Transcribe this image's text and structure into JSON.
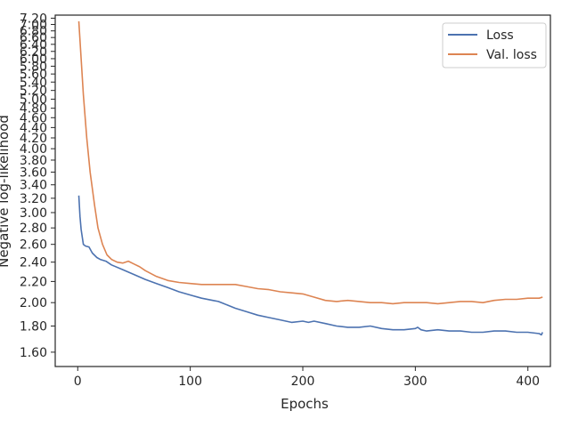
{
  "chart_data": {
    "type": "line",
    "xlabel": "Epochs",
    "ylabel": "Negative log-likelihood",
    "xlim": [
      -20,
      420
    ],
    "ylim": [
      1.5,
      7.3
    ],
    "y_scale": "log",
    "xticks": [
      0,
      100,
      200,
      300,
      400
    ],
    "xtick_labels": [
      "0",
      "100",
      "200",
      "300",
      "400"
    ],
    "yticks": [
      1.6,
      1.8,
      2.0,
      2.2,
      2.4,
      2.6,
      2.8,
      3.0,
      3.2,
      3.4,
      3.6,
      3.8,
      4.0,
      4.2,
      4.4,
      4.6,
      4.8,
      5.0,
      5.2,
      5.4,
      5.6,
      5.8,
      6.0,
      6.2,
      6.4,
      6.6,
      6.8,
      7.0,
      7.2
    ],
    "ytick_labels": [
      "1.60",
      "1.80",
      "2.00",
      "2.20",
      "2.40",
      "2.60",
      "2.80",
      "3.00",
      "3.20",
      "3.40",
      "3.60",
      "3.80",
      "4.00",
      "4.20",
      "4.40",
      "4.60",
      "4.80",
      "5.00",
      "5.20",
      "5.40",
      "5.60",
      "5.80",
      "6.00",
      "6.20",
      "6.40",
      "6.60",
      "6.80",
      "7.00",
      "7.20"
    ],
    "legend_position": "top-right",
    "series": [
      {
        "name": "Loss",
        "color": "#4c72b0",
        "x": [
          1,
          2,
          3,
          5,
          7,
          10,
          13,
          17,
          20,
          25,
          30,
          40,
          50,
          60,
          70,
          80,
          90,
          100,
          110,
          120,
          125,
          130,
          140,
          150,
          160,
          170,
          180,
          190,
          200,
          205,
          210,
          220,
          230,
          240,
          250,
          260,
          270,
          280,
          290,
          300,
          302,
          305,
          310,
          320,
          330,
          340,
          350,
          360,
          370,
          380,
          390,
          400,
          410,
          412,
          413
        ],
        "y": [
          3.24,
          2.95,
          2.78,
          2.6,
          2.58,
          2.57,
          2.5,
          2.45,
          2.43,
          2.41,
          2.37,
          2.32,
          2.27,
          2.22,
          2.18,
          2.14,
          2.1,
          2.07,
          2.04,
          2.02,
          2.01,
          1.99,
          1.95,
          1.92,
          1.89,
          1.87,
          1.85,
          1.83,
          1.84,
          1.83,
          1.84,
          1.82,
          1.8,
          1.79,
          1.79,
          1.8,
          1.78,
          1.77,
          1.77,
          1.78,
          1.79,
          1.77,
          1.76,
          1.77,
          1.76,
          1.76,
          1.75,
          1.75,
          1.76,
          1.76,
          1.75,
          1.75,
          1.74,
          1.73,
          1.75
        ]
      },
      {
        "name": "Val. loss",
        "color": "#dd8452",
        "x": [
          1,
          3,
          5,
          8,
          11,
          15,
          18,
          22,
          26,
          30,
          35,
          40,
          45,
          50,
          55,
          60,
          70,
          80,
          90,
          100,
          110,
          120,
          130,
          140,
          150,
          160,
          170,
          180,
          190,
          200,
          210,
          220,
          230,
          240,
          250,
          260,
          270,
          280,
          290,
          300,
          310,
          320,
          330,
          340,
          350,
          360,
          370,
          380,
          390,
          400,
          410,
          413
        ],
        "y": [
          7.1,
          6.0,
          5.1,
          4.2,
          3.6,
          3.1,
          2.8,
          2.6,
          2.48,
          2.43,
          2.4,
          2.39,
          2.41,
          2.38,
          2.35,
          2.31,
          2.25,
          2.21,
          2.19,
          2.18,
          2.17,
          2.17,
          2.17,
          2.17,
          2.15,
          2.13,
          2.12,
          2.1,
          2.09,
          2.08,
          2.05,
          2.02,
          2.01,
          2.02,
          2.01,
          2.0,
          2.0,
          1.99,
          2.0,
          2.0,
          2.0,
          1.99,
          2.0,
          2.01,
          2.01,
          2.0,
          2.02,
          2.03,
          2.03,
          2.04,
          2.04,
          2.05
        ]
      }
    ]
  }
}
